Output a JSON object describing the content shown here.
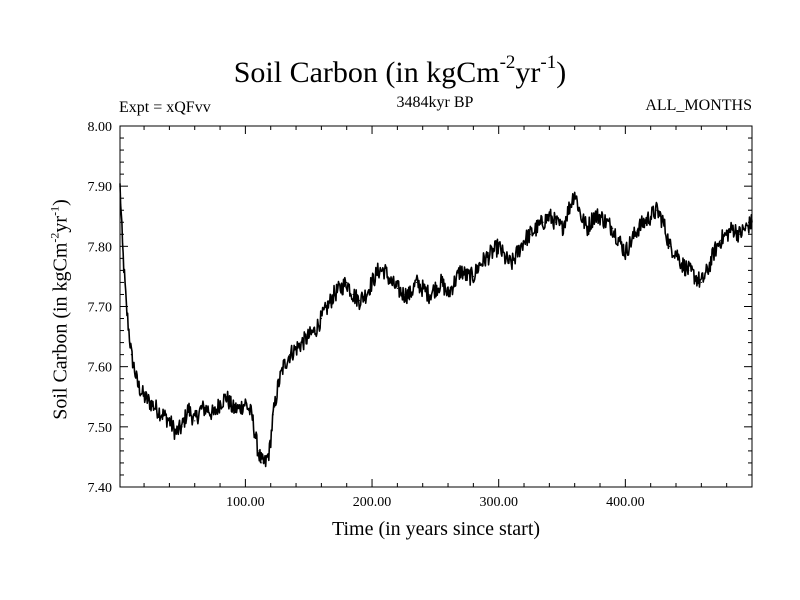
{
  "title": {
    "text": "Soil Carbon (in kgCm",
    "exp1": "-2",
    "mid": "yr",
    "exp2": "-1",
    "end": ")"
  },
  "expt_label": "Expt = xQFvv",
  "epoch_label": "3484kyr BP",
  "months_label": "ALL_MONTHS",
  "chart_data": {
    "type": "line",
    "title": "Soil Carbon (in kgCm-2yr-1)",
    "xlabel": "Time (in years since start)",
    "ylabel": {
      "text": "Soil Carbon (in kgCm",
      "exp1": "-2",
      "mid": "yr",
      "exp2": "-1",
      "end": ")"
    },
    "xlim": [
      1,
      500
    ],
    "ylim": [
      7.4,
      8.0
    ],
    "x_ticks": [
      100,
      200,
      300,
      400
    ],
    "x_tick_labels": [
      "100.00",
      "200.00",
      "300.00",
      "400.00"
    ],
    "y_ticks": [
      7.4,
      7.5,
      7.6,
      7.7,
      7.8,
      7.9,
      8.0
    ],
    "y_tick_labels": [
      "7.40",
      "7.50",
      "7.60",
      "7.70",
      "7.80",
      "7.90",
      "8.00"
    ],
    "series": [
      {
        "name": "Soil Carbon",
        "color": "#000000",
        "x": [
          1,
          3,
          6,
          10,
          15,
          20,
          25,
          30,
          35,
          40,
          45,
          50,
          55,
          60,
          65,
          70,
          75,
          80,
          85,
          90,
          95,
          100,
          105,
          110,
          113,
          116,
          119,
          122,
          126,
          130,
          135,
          140,
          145,
          150,
          155,
          160,
          165,
          170,
          175,
          180,
          185,
          190,
          195,
          200,
          205,
          210,
          215,
          220,
          225,
          230,
          235,
          240,
          245,
          250,
          255,
          260,
          265,
          270,
          275,
          280,
          285,
          290,
          295,
          300,
          305,
          310,
          315,
          320,
          325,
          330,
          335,
          340,
          345,
          350,
          355,
          360,
          365,
          370,
          375,
          380,
          385,
          390,
          395,
          400,
          405,
          410,
          415,
          420,
          425,
          430,
          435,
          440,
          445,
          450,
          455,
          460,
          465,
          470,
          475,
          480,
          485,
          490,
          495,
          500
        ],
        "values": [
          7.9,
          7.8,
          7.7,
          7.62,
          7.57,
          7.55,
          7.54,
          7.53,
          7.52,
          7.51,
          7.49,
          7.5,
          7.53,
          7.51,
          7.53,
          7.53,
          7.52,
          7.54,
          7.55,
          7.53,
          7.53,
          7.54,
          7.52,
          7.46,
          7.44,
          7.44,
          7.46,
          7.52,
          7.57,
          7.6,
          7.62,
          7.63,
          7.64,
          7.65,
          7.66,
          7.68,
          7.7,
          7.72,
          7.73,
          7.74,
          7.72,
          7.71,
          7.72,
          7.74,
          7.76,
          7.76,
          7.74,
          7.73,
          7.72,
          7.72,
          7.74,
          7.73,
          7.72,
          7.73,
          7.74,
          7.72,
          7.74,
          7.76,
          7.75,
          7.75,
          7.77,
          7.78,
          7.79,
          7.8,
          7.78,
          7.77,
          7.79,
          7.81,
          7.82,
          7.83,
          7.84,
          7.85,
          7.84,
          7.83,
          7.86,
          7.89,
          7.85,
          7.83,
          7.85,
          7.85,
          7.84,
          7.83,
          7.81,
          7.79,
          7.81,
          7.83,
          7.84,
          7.85,
          7.86,
          7.84,
          7.8,
          7.79,
          7.77,
          7.76,
          7.75,
          7.74,
          7.76,
          7.79,
          7.81,
          7.82,
          7.83,
          7.82,
          7.83,
          7.84
        ]
      }
    ]
  }
}
